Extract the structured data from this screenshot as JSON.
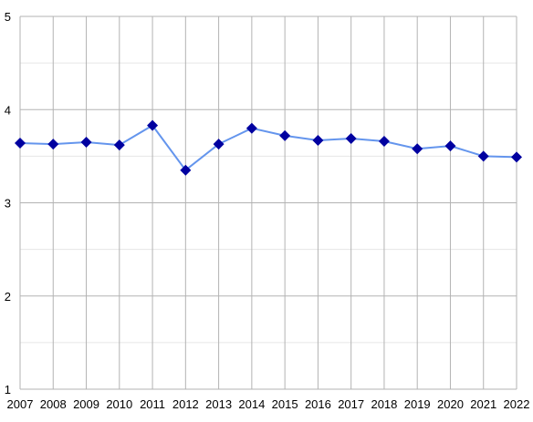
{
  "chart_data": {
    "type": "line",
    "title": "",
    "xlabel": "",
    "ylabel": "",
    "categories": [
      "2007",
      "2008",
      "2009",
      "2010",
      "2011",
      "2012",
      "2013",
      "2014",
      "2015",
      "2016",
      "2017",
      "2018",
      "2019",
      "2020",
      "2021",
      "2022"
    ],
    "series": [
      {
        "values": [
          3.64,
          3.63,
          3.65,
          3.62,
          3.83,
          3.35,
          3.63,
          3.8,
          3.72,
          3.67,
          3.69,
          3.66,
          3.58,
          3.61,
          3.5,
          3.49
        ],
        "line_color": "#6495ed",
        "marker_color": "#0000a0",
        "marker": "diamond"
      }
    ],
    "ylim": [
      1,
      5
    ],
    "yticks": [
      "1",
      "2",
      "3",
      "4",
      "5"
    ],
    "grid": true,
    "legend": "none"
  }
}
